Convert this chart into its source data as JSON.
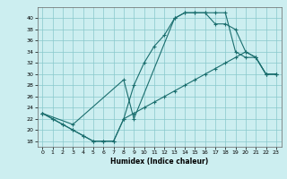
{
  "xlabel": "Humidex (Indice chaleur)",
  "bg_color": "#cceef0",
  "grid_color": "#88c8cc",
  "line_color": "#1a6e6e",
  "line1_x": [
    0,
    1,
    2,
    3,
    4,
    5,
    6,
    7,
    8,
    9,
    10,
    11,
    12,
    13,
    14,
    15,
    16,
    17,
    18,
    19,
    20,
    21,
    22,
    23
  ],
  "line1_y": [
    23,
    22,
    21,
    20,
    19,
    18,
    18,
    18,
    22,
    28,
    32,
    35,
    37,
    40,
    41,
    41,
    41,
    41,
    41,
    34,
    33,
    33,
    30,
    30
  ],
  "line2_x": [
    0,
    1,
    2,
    3,
    4,
    5,
    6,
    7,
    8,
    9,
    10,
    11,
    12,
    13,
    14,
    15,
    16,
    17,
    18,
    19,
    20,
    21,
    22,
    23
  ],
  "line2_y": [
    23,
    22,
    21,
    20,
    19,
    18,
    18,
    18,
    22,
    23,
    24,
    25,
    26,
    27,
    28,
    29,
    30,
    31,
    32,
    33,
    34,
    33,
    30,
    30
  ],
  "line3_x": [
    0,
    3,
    8,
    9,
    13,
    14,
    15,
    16,
    17,
    18,
    19,
    20,
    21,
    22,
    23
  ],
  "line3_y": [
    23,
    21,
    29,
    22,
    40,
    41,
    41,
    41,
    39,
    39,
    38,
    34,
    33,
    30,
    30
  ],
  "xlim": [
    -0.5,
    23.5
  ],
  "ylim": [
    17,
    42
  ],
  "yticks": [
    18,
    20,
    22,
    24,
    26,
    28,
    30,
    32,
    34,
    36,
    38,
    40
  ],
  "xticks": [
    0,
    1,
    2,
    3,
    4,
    5,
    6,
    7,
    8,
    9,
    10,
    11,
    12,
    13,
    14,
    15,
    16,
    17,
    18,
    19,
    20,
    21,
    22,
    23
  ]
}
